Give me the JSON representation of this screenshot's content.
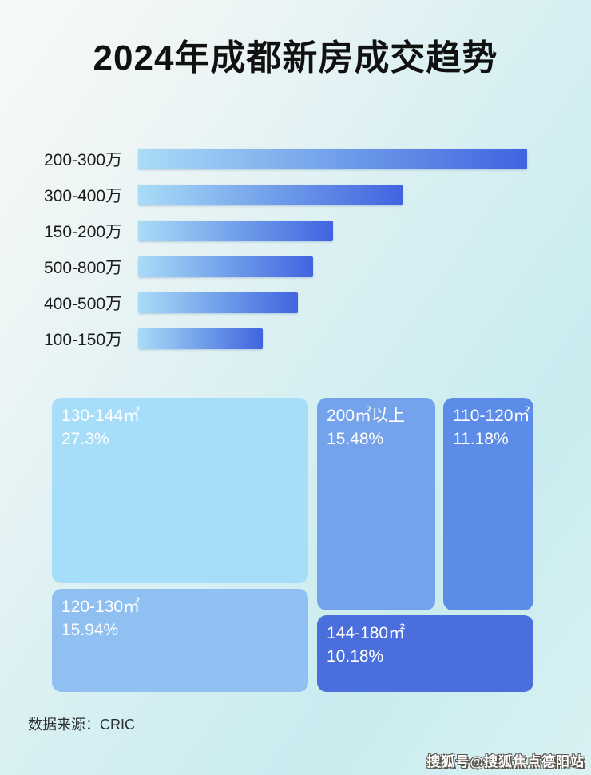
{
  "page": {
    "title": "2024年成都新房成交趋势",
    "footer": {
      "source_label": "数据来源：CRIC"
    },
    "watermark": "搜狐号@搜狐焦点德阳站",
    "colors": {
      "bar_gradient_start": "#aadcf7",
      "bar_gradient_mid": "#6d9ae9",
      "bar_gradient_end": "#4164e0",
      "title_color": "#111111",
      "treemap_text": "#ffffff"
    }
  },
  "chart_data": [
    {
      "type": "bar",
      "orientation": "horizontal",
      "title": "2024年成都新房成交趋势",
      "categories": [
        "200-300万",
        "300-400万",
        "150-200万",
        "500-800万",
        "400-500万",
        "100-150万"
      ],
      "values_pct_of_max": [
        100,
        68,
        50,
        45,
        41,
        32
      ],
      "value_labels_shown": false,
      "axis_shown": false,
      "grid": false,
      "legend": false
    },
    {
      "type": "treemap",
      "items": [
        {
          "label": "130-144㎡",
          "value_pct": 27.3,
          "value_text": "27.3%",
          "color": "#a6ddf8"
        },
        {
          "label": "120-130㎡",
          "value_pct": 15.94,
          "value_text": "15.94%",
          "color": "#8fc0f1"
        },
        {
          "label": "200㎡以上",
          "value_pct": 15.48,
          "value_text": "15.48%",
          "color": "#74a3ec"
        },
        {
          "label": "110-120㎡",
          "value_pct": 11.18,
          "value_text": "11.18%",
          "color": "#5d8ce8"
        },
        {
          "label": "144-180㎡",
          "value_pct": 10.18,
          "value_text": "10.18%",
          "color": "#4a6fdd"
        }
      ]
    }
  ]
}
